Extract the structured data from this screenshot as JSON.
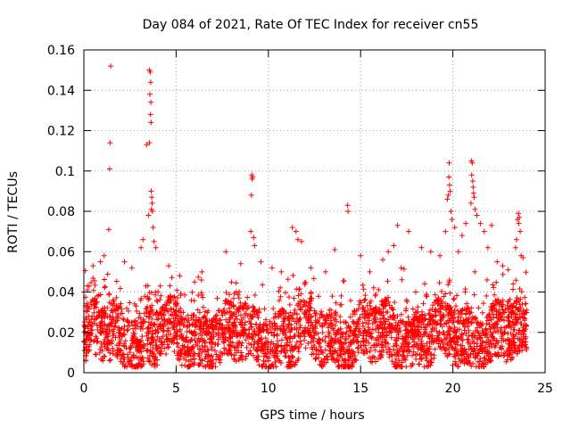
{
  "chart_data": {
    "type": "scatter",
    "title": "Day 084 of 2021, Rate Of TEC Index for receiver cn55",
    "xlabel": "GPS time / hours",
    "ylabel": "ROTI / TECUs",
    "xlim": [
      0,
      25
    ],
    "ylim": [
      0,
      0.16
    ],
    "xticks": [
      0,
      5,
      10,
      15,
      20,
      25
    ],
    "xtick_labels": [
      "0",
      "5",
      "10",
      "15",
      "20",
      "25"
    ],
    "yticks": [
      0,
      0.02,
      0.04,
      0.06,
      0.08,
      0.1,
      0.12,
      0.14,
      0.16
    ],
    "ytick_labels": [
      "0",
      "0.02",
      "0.04",
      "0.06",
      "0.08",
      "0.1",
      "0.12",
      "0.14",
      "0.16"
    ],
    "grid": true,
    "marker": "plus",
    "color": "#ff0000",
    "series": [
      {
        "name": "ROTI",
        "points": [
          [
            1.45,
            0.152
          ],
          [
            1.42,
            0.114
          ],
          [
            1.4,
            0.101
          ],
          [
            1.35,
            0.071
          ],
          [
            3.55,
            0.15
          ],
          [
            3.6,
            0.149
          ],
          [
            3.62,
            0.144
          ],
          [
            3.58,
            0.138
          ],
          [
            3.63,
            0.134
          ],
          [
            3.61,
            0.128
          ],
          [
            3.64,
            0.124
          ],
          [
            3.4,
            0.113
          ],
          [
            3.55,
            0.114
          ],
          [
            3.65,
            0.09
          ],
          [
            3.68,
            0.087
          ],
          [
            3.7,
            0.084
          ],
          [
            3.66,
            0.081
          ],
          [
            3.72,
            0.08
          ],
          [
            3.75,
            0.072
          ],
          [
            3.5,
            0.078
          ],
          [
            3.8,
            0.065
          ],
          [
            3.9,
            0.062
          ],
          [
            3.1,
            0.062
          ],
          [
            3.2,
            0.066
          ],
          [
            9.1,
            0.098
          ],
          [
            9.15,
            0.097
          ],
          [
            9.12,
            0.096
          ],
          [
            9.08,
            0.088
          ],
          [
            9.05,
            0.07
          ],
          [
            9.2,
            0.067
          ],
          [
            9.25,
            0.063
          ],
          [
            11.6,
            0.066
          ],
          [
            11.8,
            0.065
          ],
          [
            11.5,
            0.07
          ],
          [
            11.3,
            0.072
          ],
          [
            14.3,
            0.083
          ],
          [
            14.32,
            0.08
          ],
          [
            17.0,
            0.073
          ],
          [
            17.6,
            0.07
          ],
          [
            16.8,
            0.063
          ],
          [
            16.5,
            0.06
          ],
          [
            19.8,
            0.104
          ],
          [
            19.78,
            0.097
          ],
          [
            19.82,
            0.093
          ],
          [
            19.85,
            0.09
          ],
          [
            19.75,
            0.088
          ],
          [
            19.7,
            0.086
          ],
          [
            19.9,
            0.08
          ],
          [
            19.95,
            0.076
          ],
          [
            20.1,
            0.072
          ],
          [
            19.6,
            0.07
          ],
          [
            21.0,
            0.105
          ],
          [
            21.05,
            0.104
          ],
          [
            21.02,
            0.098
          ],
          [
            21.08,
            0.095
          ],
          [
            21.1,
            0.092
          ],
          [
            21.12,
            0.089
          ],
          [
            21.15,
            0.087
          ],
          [
            20.98,
            0.084
          ],
          [
            21.2,
            0.081
          ],
          [
            21.3,
            0.078
          ],
          [
            21.5,
            0.074
          ],
          [
            22.1,
            0.073
          ],
          [
            21.7,
            0.07
          ],
          [
            20.7,
            0.074
          ],
          [
            20.5,
            0.068
          ],
          [
            23.55,
            0.079
          ],
          [
            23.6,
            0.077
          ],
          [
            23.5,
            0.076
          ],
          [
            23.58,
            0.074
          ],
          [
            23.65,
            0.07
          ],
          [
            23.45,
            0.066
          ],
          [
            23.4,
            0.062
          ],
          [
            23.7,
            0.058
          ],
          [
            22.7,
            0.053
          ],
          [
            0.5,
            0.053
          ],
          [
            0.9,
            0.055
          ],
          [
            1.1,
            0.058
          ],
          [
            2.2,
            0.055
          ],
          [
            2.6,
            0.052
          ],
          [
            4.6,
            0.053
          ],
          [
            5.2,
            0.048
          ],
          [
            6.0,
            0.045
          ],
          [
            6.4,
            0.05
          ],
          [
            7.7,
            0.06
          ],
          [
            8.5,
            0.054
          ],
          [
            9.6,
            0.055
          ],
          [
            10.2,
            0.052
          ],
          [
            10.7,
            0.05
          ],
          [
            12.3,
            0.052
          ],
          [
            13.1,
            0.05
          ],
          [
            13.6,
            0.061
          ],
          [
            15.0,
            0.058
          ],
          [
            15.5,
            0.05
          ],
          [
            16.2,
            0.056
          ],
          [
            17.2,
            0.052
          ],
          [
            18.3,
            0.062
          ],
          [
            18.8,
            0.06
          ],
          [
            19.3,
            0.058
          ],
          [
            20.3,
            0.06
          ],
          [
            21.9,
            0.062
          ],
          [
            22.4,
            0.055
          ],
          [
            23.0,
            0.051
          ],
          [
            23.8,
            0.057
          ],
          [
            0.0,
            0.04
          ],
          [
            0.2,
            0.041
          ]
        ]
      }
    ],
    "dense_band": {
      "x_range": [
        0,
        24
      ],
      "y_floor": 0.004,
      "y_typical_max": 0.032,
      "y_occasional_max": 0.052
    }
  }
}
